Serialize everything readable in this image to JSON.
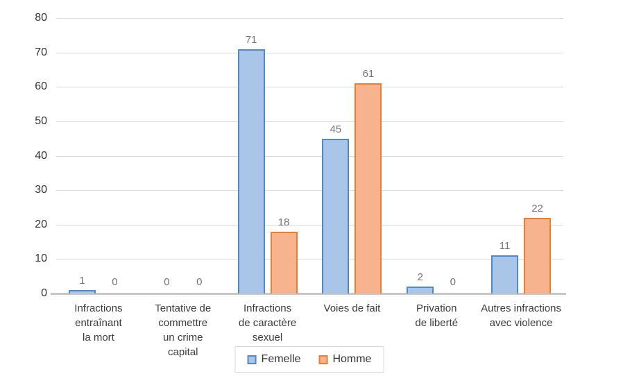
{
  "chart_data": {
    "type": "bar",
    "title": "",
    "xlabel": "",
    "ylabel": "",
    "categories": [
      "Infractions entraînant la mort",
      "Tentative de commettre un crime capital",
      "Infractions de caractère sexuel",
      "Voies de fait",
      "Privation de liberté",
      "Autres infractions avec violence"
    ],
    "category_display_lines": [
      [
        "Infractions",
        "entraînant",
        "la mort"
      ],
      [
        "Tentative de",
        "commettre",
        "un crime",
        "capital"
      ],
      [
        "Infractions",
        "de caractère",
        "sexuel"
      ],
      [
        "Voies de fait"
      ],
      [
        "Privation",
        "de liberté"
      ],
      [
        "Autres infractions",
        "avec violence"
      ]
    ],
    "series": [
      {
        "name": "Femelle",
        "values": [
          1,
          0,
          71,
          45,
          2,
          11
        ],
        "fill": "#A9C6E8",
        "border": "#5089C6"
      },
      {
        "name": "Homme",
        "values": [
          0,
          0,
          18,
          61,
          0,
          22
        ],
        "fill": "#F6B38D",
        "border": "#ED7D31"
      }
    ],
    "ylim": [
      0,
      80
    ],
    "yticks": [
      0,
      10,
      20,
      30,
      40,
      50,
      60,
      70,
      80
    ],
    "grid": true,
    "legend_position": "bottom",
    "colors": {
      "background": "#FFFFFF",
      "gridline": "#D9D9D9",
      "axis_line": "#C6C6C6",
      "value_label": "#737373",
      "category_label": "#3B3B3B",
      "tick_label": "#333333",
      "legend_border": "#D9D9D9"
    }
  }
}
